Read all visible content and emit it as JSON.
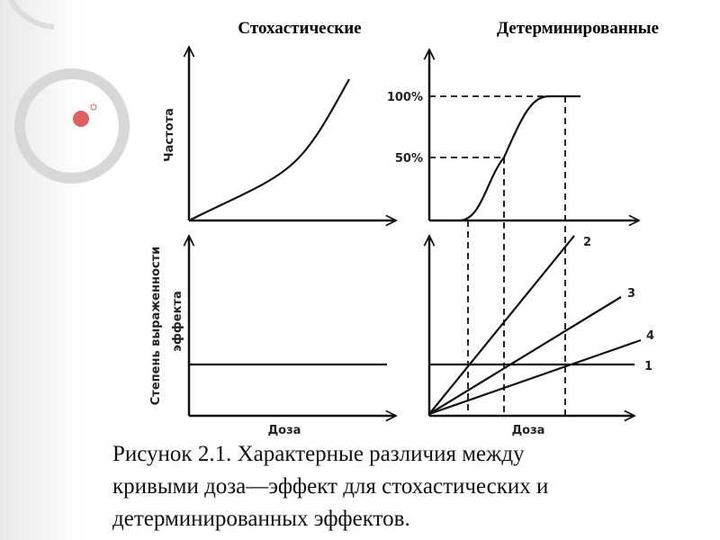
{
  "header": {
    "left_title": "Стохастические",
    "right_title": "Детерминированные"
  },
  "axes": {
    "frequency_label": "Частота",
    "severity_label": [
      "Степень выраженности",
      "эффекта"
    ],
    "dose_left": "Доза",
    "dose_right": "Доза"
  },
  "levels": {
    "top": "100%",
    "middle": "50%"
  },
  "lines": {
    "l2": "2",
    "l3": "3",
    "l4": "4",
    "l1": "1"
  },
  "caption": [
    "Рисунок 2.1. Характерные различия между",
    "кривыми доза—эффект для стохастических и",
    "детерминированных эффектов."
  ]
}
